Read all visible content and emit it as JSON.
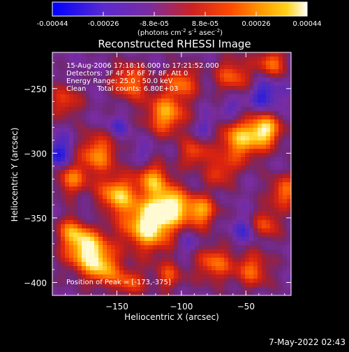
{
  "colorbar": {
    "ticks": [
      "-0.00044",
      "-0.00026",
      "-8.8e-05",
      "8.8e-05",
      "0.00026",
      "0.00044"
    ],
    "unit_parts": [
      "(photons cm",
      "-2",
      " s",
      "-1",
      " asec",
      "-2",
      ")"
    ]
  },
  "chart_data": {
    "type": "heatmap",
    "title": "Reconstructed RHESSI Image",
    "xlabel": "Heliocentric X (arcsec)",
    "ylabel": "Heliocentric Y (arcsec)",
    "xlim": [
      -200,
      -15
    ],
    "ylim": [
      -410,
      -222
    ],
    "xticks": [
      -150,
      -100,
      -50
    ],
    "yticks": [
      -250,
      -300,
      -350,
      -400
    ],
    "value_range": [
      -0.00044,
      0.00044
    ],
    "colormap": [
      "#0000ff",
      "#7a2ca0",
      "#cc2222",
      "#ff7a00",
      "#ffd21a",
      "#fff6c0"
    ],
    "peak_position": [
      -173,
      -375
    ],
    "header_lines": [
      "15-Aug-2006 17:18:16.000 to 17:21:52.000",
      "Detectors: 3F 4F 5F 6F 7F 8F, Att 0",
      "Energy Range: 25.0 - 50.0 keV",
      "Clean     Total counts: 6.80E+03"
    ],
    "peak_text": "Position of Peak = [-173,-375]"
  },
  "timestamp": "7-May-2022 02:43"
}
